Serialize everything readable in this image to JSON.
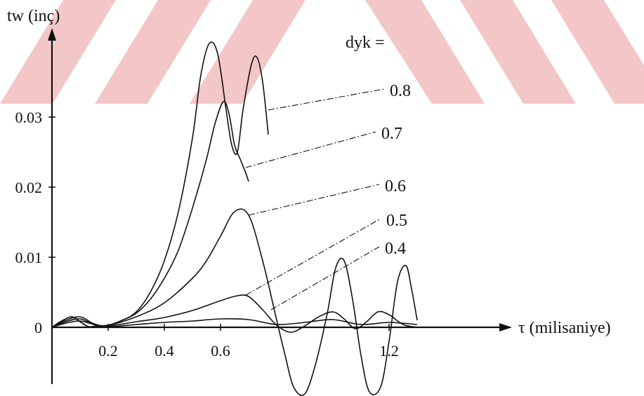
{
  "watermark": {
    "color": "#f3c7c7"
  },
  "chart_data": {
    "type": "line",
    "ylabel": "tw (inç)",
    "xlabel": "τ (milisaniye)",
    "legend_title": "dyk =",
    "x_ticks": [
      {
        "value": 0.2,
        "label": "0.2"
      },
      {
        "value": 0.4,
        "label": "0.4"
      },
      {
        "value": 0.6,
        "label": "0.6"
      },
      {
        "value": 1.2,
        "label": "1.2"
      }
    ],
    "y_ticks": [
      {
        "value": 0,
        "label": "0"
      },
      {
        "value": 0.01,
        "label": "0.01"
      },
      {
        "value": 0.02,
        "label": "0.02"
      },
      {
        "value": 0.03,
        "label": "0.03"
      }
    ],
    "xlim": [
      0,
      1.3
    ],
    "ylim": [
      -0.01,
      0.04
    ],
    "series": [
      {
        "name": "0.8",
        "points": [
          [
            0,
            0
          ],
          [
            0.03,
            0.0008
          ],
          [
            0.07,
            0.0015
          ],
          [
            0.1,
            0.0008
          ],
          [
            0.13,
            0.0001
          ],
          [
            0.16,
            0.0002
          ],
          [
            0.2,
            0.0003
          ],
          [
            0.25,
            0.001
          ],
          [
            0.3,
            0.0022
          ],
          [
            0.35,
            0.005
          ],
          [
            0.4,
            0.0095
          ],
          [
            0.45,
            0.0165
          ],
          [
            0.5,
            0.027
          ],
          [
            0.53,
            0.036
          ],
          [
            0.56,
            0.0405
          ],
          [
            0.59,
            0.039
          ],
          [
            0.62,
            0.031
          ],
          [
            0.64,
            0.026
          ],
          [
            0.66,
            0.025
          ],
          [
            0.68,
            0.031
          ],
          [
            0.71,
            0.0375
          ],
          [
            0.73,
            0.0385
          ],
          [
            0.75,
            0.035
          ],
          [
            0.77,
            0.0275
          ]
        ]
      },
      {
        "name": "0.7",
        "points": [
          [
            0,
            0
          ],
          [
            0.03,
            0.0008
          ],
          [
            0.07,
            0.0015
          ],
          [
            0.1,
            0.0008
          ],
          [
            0.13,
            0.0001
          ],
          [
            0.16,
            0.0002
          ],
          [
            0.2,
            0.0003
          ],
          [
            0.25,
            0.001
          ],
          [
            0.3,
            0.002
          ],
          [
            0.35,
            0.004
          ],
          [
            0.4,
            0.007
          ],
          [
            0.45,
            0.011
          ],
          [
            0.5,
            0.017
          ],
          [
            0.55,
            0.024
          ],
          [
            0.58,
            0.029
          ],
          [
            0.61,
            0.0322
          ],
          [
            0.63,
            0.0305
          ],
          [
            0.65,
            0.026
          ],
          [
            0.67,
            0.024
          ],
          [
            0.69,
            0.022
          ],
          [
            0.7,
            0.0208
          ]
        ]
      },
      {
        "name": "0.6",
        "points": [
          [
            0,
            0
          ],
          [
            0.05,
            0.001
          ],
          [
            0.1,
            0.0015
          ],
          [
            0.15,
            0.0005
          ],
          [
            0.2,
            0.0003
          ],
          [
            0.3,
            0.0015
          ],
          [
            0.4,
            0.0035
          ],
          [
            0.5,
            0.007
          ],
          [
            0.55,
            0.0095
          ],
          [
            0.6,
            0.013
          ],
          [
            0.65,
            0.0165
          ],
          [
            0.7,
            0.016
          ],
          [
            0.75,
            0.0095
          ],
          [
            0.8,
            0.001
          ],
          [
            0.83,
            -0.004
          ],
          [
            0.86,
            -0.0085
          ],
          [
            0.9,
            -0.0095
          ],
          [
            0.94,
            -0.005
          ],
          [
            0.98,
            0.002
          ],
          [
            1.01,
            0.0085
          ],
          [
            1.04,
            0.0095
          ],
          [
            1.07,
            0.004
          ],
          [
            1.1,
            -0.004
          ],
          [
            1.13,
            -0.0092
          ],
          [
            1.17,
            -0.0085
          ],
          [
            1.2,
            -0.002
          ],
          [
            1.23,
            0.0065
          ],
          [
            1.26,
            0.0088
          ],
          [
            1.28,
            0.0055
          ],
          [
            1.3,
            0.001
          ]
        ]
      },
      {
        "name": "0.5",
        "points": [
          [
            0,
            0
          ],
          [
            0.05,
            0.0008
          ],
          [
            0.1,
            0.0012
          ],
          [
            0.15,
            0.0004
          ],
          [
            0.2,
            0.0002
          ],
          [
            0.3,
            0.0008
          ],
          [
            0.4,
            0.0014
          ],
          [
            0.5,
            0.0024
          ],
          [
            0.6,
            0.0038
          ],
          [
            0.66,
            0.0045
          ],
          [
            0.7,
            0.0044
          ],
          [
            0.75,
            0.0025
          ],
          [
            0.8,
            0.0003
          ],
          [
            0.85,
            -0.0007
          ],
          [
            0.9,
            0.0002
          ],
          [
            0.95,
            0.0015
          ],
          [
            1.0,
            0.0022
          ],
          [
            1.04,
            0.0012
          ],
          [
            1.08,
            -0.0002
          ],
          [
            1.12,
            0.0008
          ],
          [
            1.16,
            0.0022
          ],
          [
            1.2,
            0.0018
          ],
          [
            1.25,
            0.0004
          ],
          [
            1.3,
            0
          ]
        ]
      },
      {
        "name": "0.4",
        "points": [
          [
            0,
            0
          ],
          [
            0.05,
            0.0006
          ],
          [
            0.1,
            0.0009
          ],
          [
            0.15,
            0.0004
          ],
          [
            0.2,
            0.0001
          ],
          [
            0.3,
            0.0004
          ],
          [
            0.4,
            0.0007
          ],
          [
            0.5,
            0.0009
          ],
          [
            0.6,
            0.0012
          ],
          [
            0.7,
            0.0011
          ],
          [
            0.8,
            0.0004
          ],
          [
            0.9,
            0.0007
          ],
          [
            1.0,
            0.0011
          ],
          [
            1.1,
            0.0004
          ],
          [
            1.2,
            0.0007
          ],
          [
            1.3,
            0.0004
          ]
        ]
      }
    ],
    "annotations": [
      {
        "text": "0.8",
        "series": "0.8",
        "anchor": [
          0.77,
          0.031
        ]
      },
      {
        "text": "0.7",
        "series": "0.7",
        "anchor": [
          0.69,
          0.0228
        ]
      },
      {
        "text": "0.6",
        "series": "0.6",
        "anchor": [
          0.7,
          0.016
        ]
      },
      {
        "text": "0.5",
        "series": "0.5",
        "anchor": [
          0.69,
          0.0046
        ]
      },
      {
        "text": "0.4",
        "series": "0.4",
        "anchor": [
          0.78,
          0.0025
        ]
      }
    ]
  }
}
